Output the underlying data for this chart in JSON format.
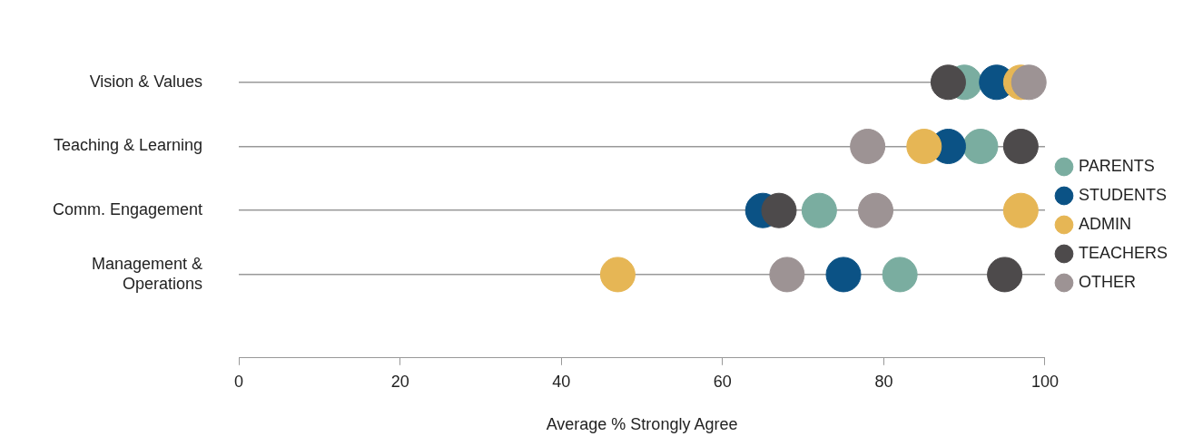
{
  "chart_data": {
    "type": "scatter",
    "orientation": "horizontal",
    "xlabel": "Average % Strongly Agree",
    "categories": [
      "Vision & Values",
      "Teaching & Learning",
      "Comm. Engagement",
      "Management & Operations"
    ],
    "series": [
      {
        "name": "PARENTS",
        "color": "#7aada0",
        "values": [
          90,
          92,
          72,
          82
        ]
      },
      {
        "name": "STUDENTS",
        "color": "#0b5285",
        "values": [
          94,
          88,
          65,
          75
        ]
      },
      {
        "name": "ADMIN",
        "color": "#e6b655",
        "values": [
          97,
          85,
          97,
          47
        ]
      },
      {
        "name": "TEACHERS",
        "color": "#4d4a4b",
        "values": [
          88,
          97,
          67,
          95
        ]
      },
      {
        "name": "OTHER",
        "color": "#9d9394",
        "values": [
          98,
          78,
          79,
          68
        ]
      }
    ],
    "xlim": [
      0,
      100
    ],
    "xticks": [
      0,
      20,
      40,
      60,
      80,
      100
    ],
    "grid": "y",
    "legend": "right",
    "marker": "circle"
  }
}
